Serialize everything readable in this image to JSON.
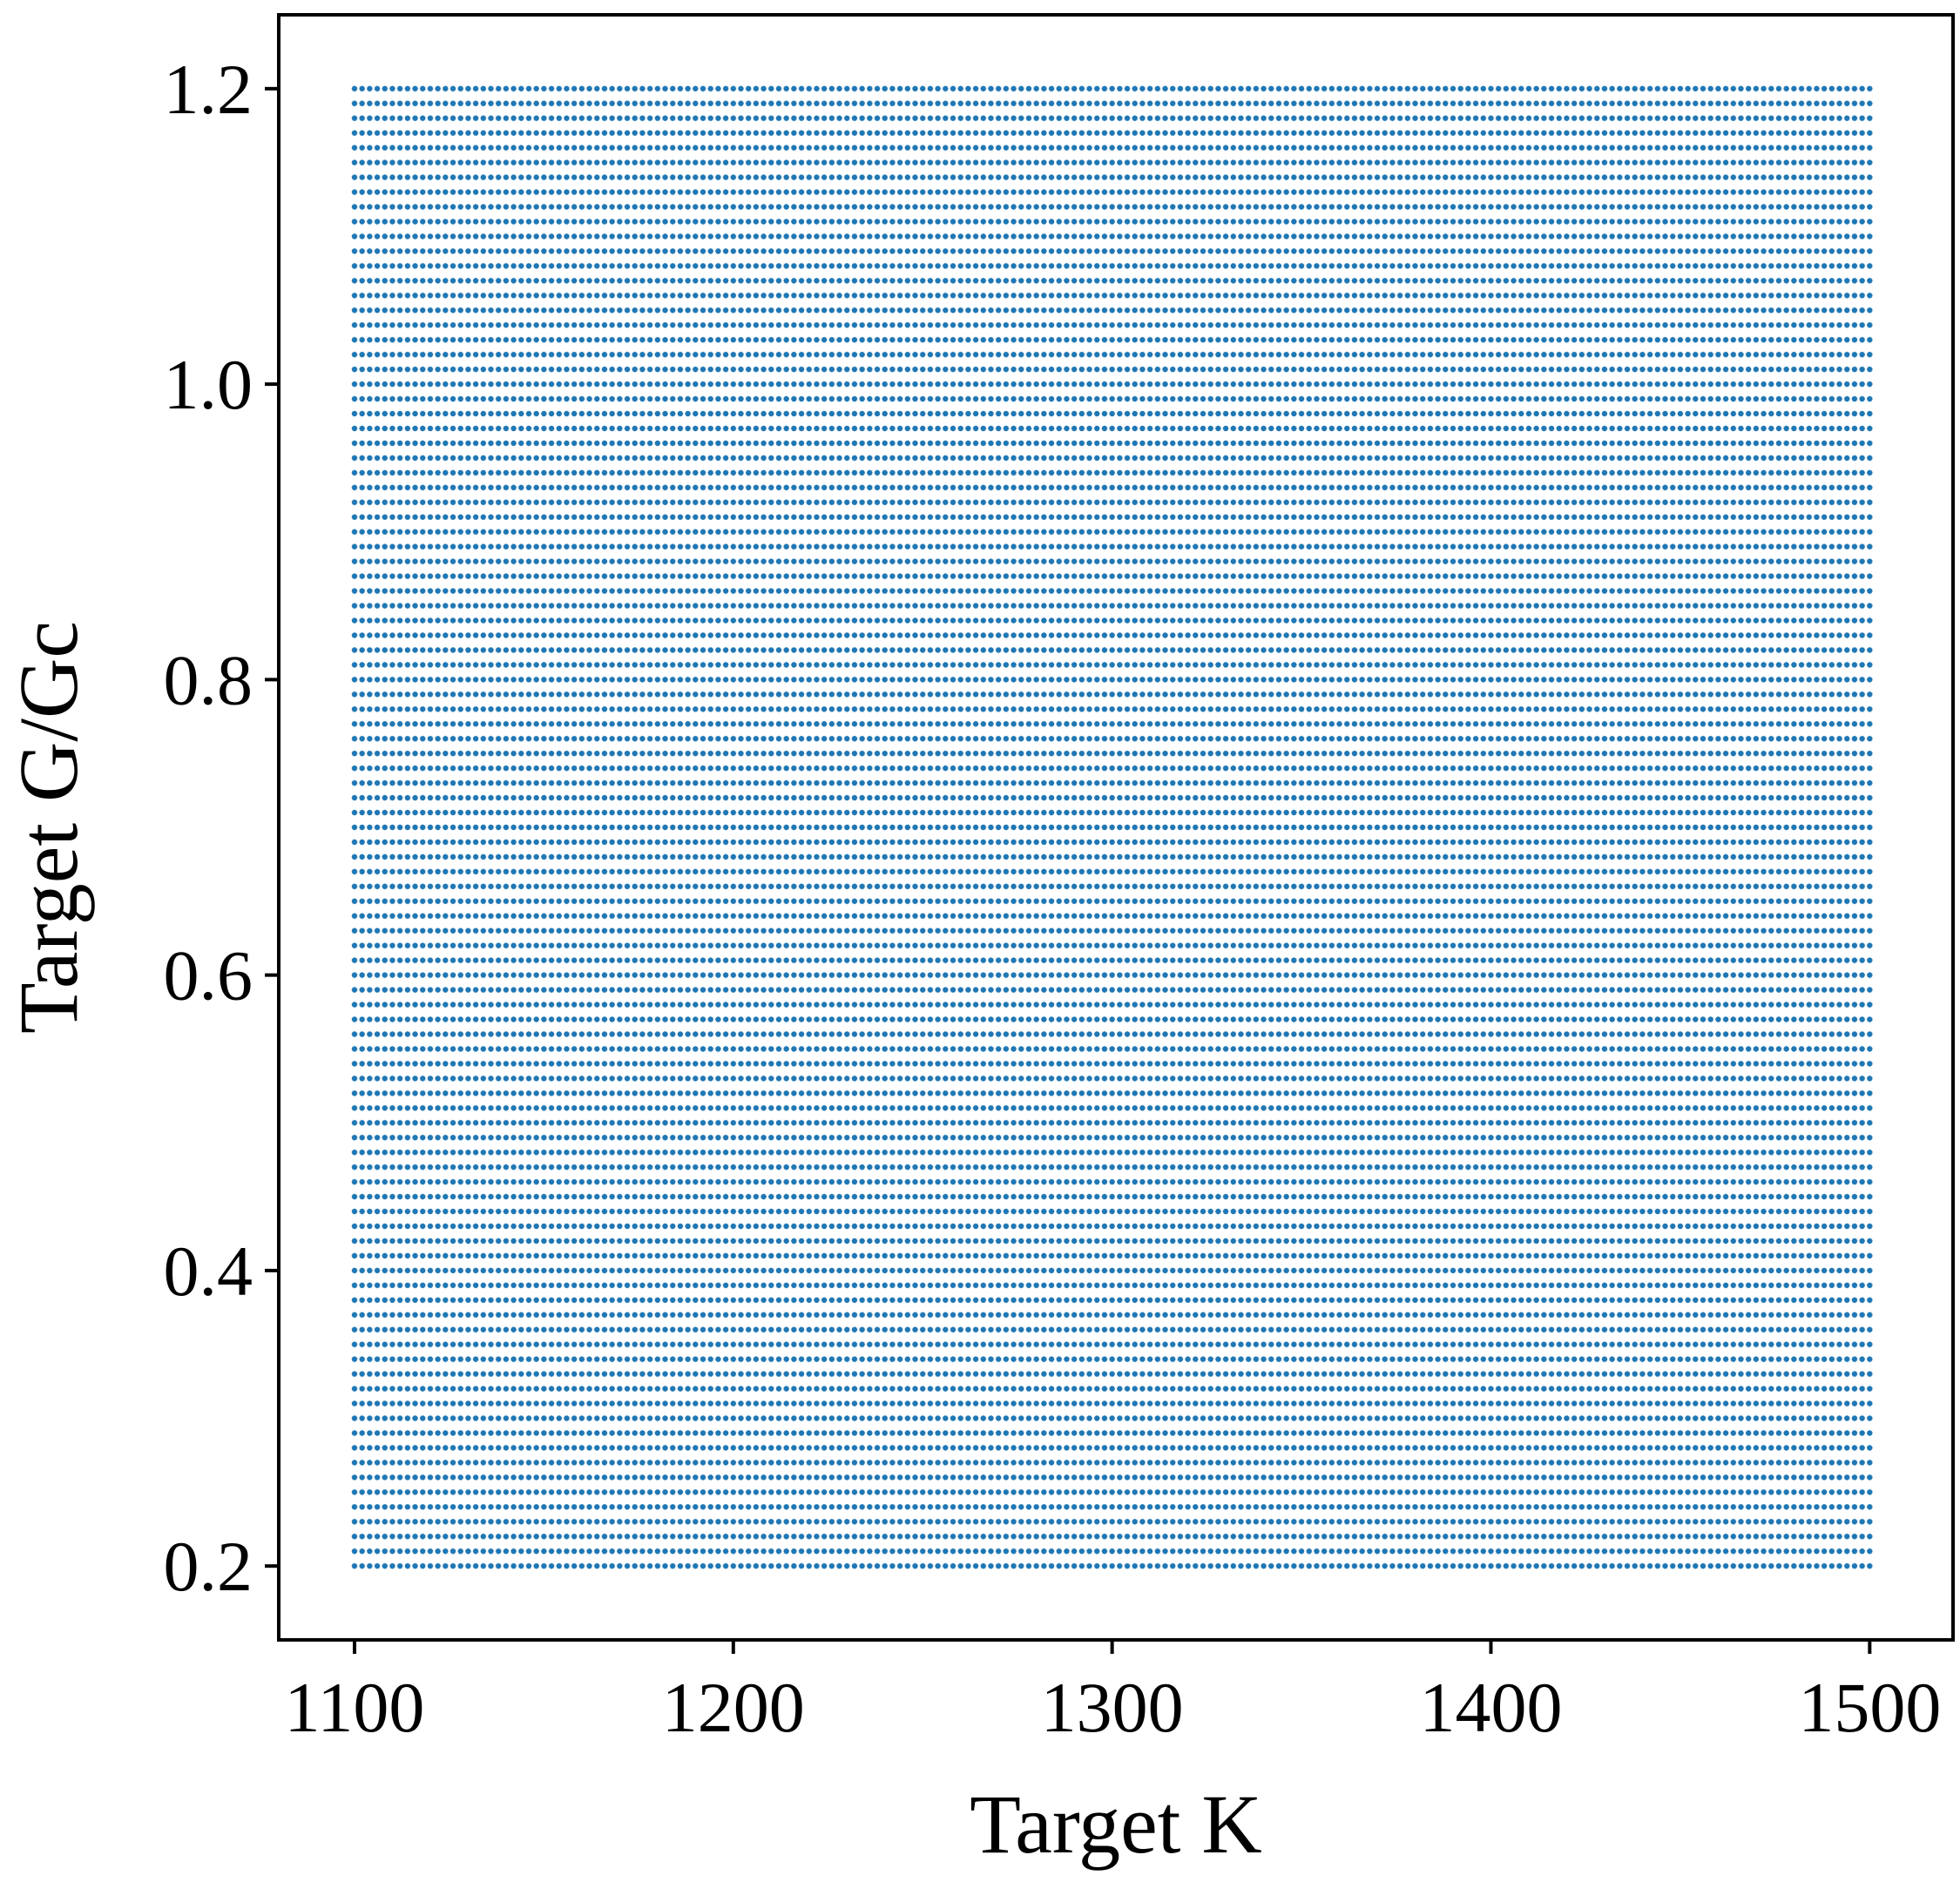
{
  "chart_data": {
    "type": "scatter",
    "title": "",
    "xlabel": "Target K",
    "ylabel": "Target G/Gc",
    "xlim": [
      1080,
      1522
    ],
    "ylim": [
      0.15,
      1.25
    ],
    "xticks": [
      1100,
      1200,
      1300,
      1400,
      1500
    ],
    "yticks": [
      0.2,
      0.4,
      0.6,
      0.8,
      1.0,
      1.2
    ],
    "xtick_labels": [
      "1100",
      "1200",
      "1300",
      "1400",
      "1500"
    ],
    "ytick_labels": [
      "0.2",
      "0.4",
      "0.6",
      "0.8",
      "1.0",
      "1.2"
    ],
    "grid": false,
    "legend": "none",
    "series": [
      {
        "color": "#1f77b4",
        "marker": "dot",
        "grid_points": {
          "x_start": 1100,
          "x_end": 1500,
          "x_count": 201,
          "y_start": 0.2,
          "y_end": 1.2,
          "y_count": 101
        }
      }
    ]
  }
}
